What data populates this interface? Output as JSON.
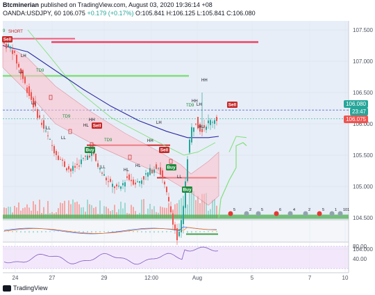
{
  "header": {
    "author": "Btcminerian",
    "published": "published on TradingView.com, August 03, 2020 19:36:14 +08",
    "symbol": "OANDA:USDJPY, 60",
    "last": "106.075",
    "change": "+0.179 (+0.17%)",
    "ohlc": "O:105.841 H:106.125 L:105.841 C:106.080"
  },
  "price_axis": [
    "107.500",
    "107.000",
    "106.500",
    "106.000",
    "105.500",
    "105.000",
    "104.500",
    "104.000"
  ],
  "price_tags": {
    "current": "106.080",
    "countdown": "23:47",
    "prev": "106.075"
  },
  "rsi_axis": [
    "80.00",
    "40.00"
  ],
  "time_axis": [
    "24",
    "27",
    "29",
    "12:00",
    "Aug",
    "5",
    "7",
    "10"
  ],
  "annotations": {
    "short": "SHORT",
    "signals": [
      "Sell",
      "Sell",
      "Sell",
      "Sell",
      "Buy",
      "Buy",
      "Buy"
    ],
    "structure": [
      "LH",
      "LL",
      "LL",
      "LL",
      "LL",
      "HL",
      "HH",
      "HH",
      "HL",
      "LH",
      "LL",
      "HL",
      "HH",
      "HL",
      "LL",
      "LH",
      "HH"
    ],
    "counts": [
      "TD9",
      "TD9",
      "TD9",
      "TD9",
      "9"
    ]
  },
  "events": [
    "5",
    "2",
    "5",
    "6",
    "4",
    "2",
    "5",
    "1",
    "101"
  ],
  "footer": {
    "brand": "TradingView"
  },
  "colors": {
    "up": "#26a69a",
    "down": "#ef5350",
    "buy": "#1b8a3a",
    "sell": "#c62828",
    "ma": "#2929a3",
    "cloud": "#ffc0cb",
    "ichimoku_green": "#7fe07a",
    "zone": "#4caf50"
  }
}
